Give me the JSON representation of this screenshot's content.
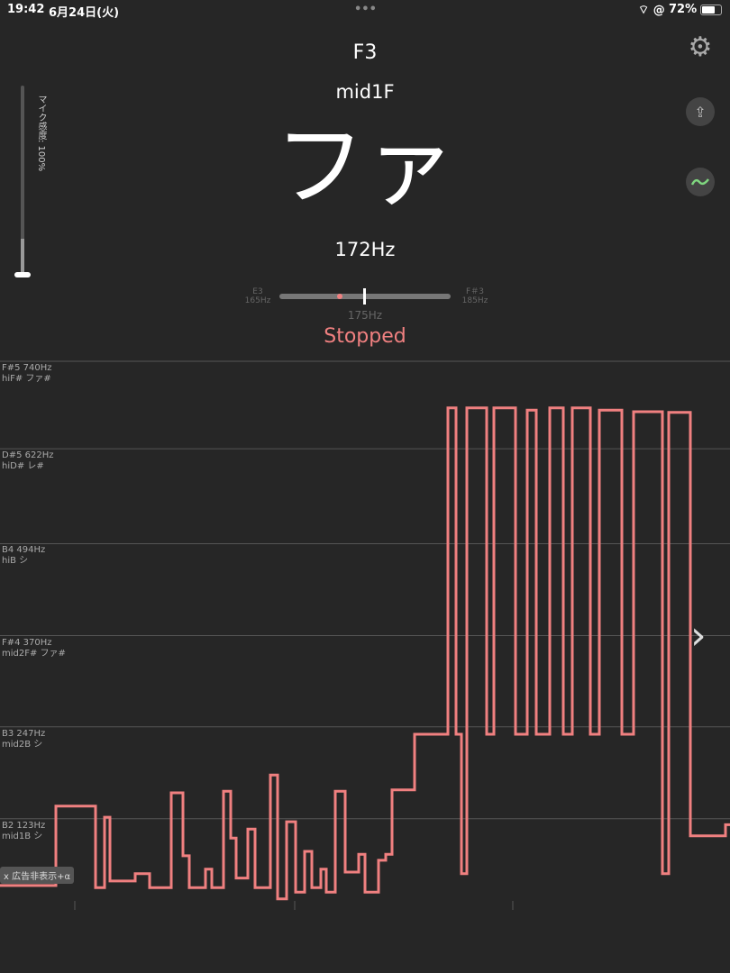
{
  "status_bar": {
    "time": "19:42",
    "date": "6月24日(火)",
    "battery": "72%",
    "dots": "•••"
  },
  "note": {
    "name": "F3",
    "octave_name": "mid1F",
    "solfege": "ファ",
    "frequency": "172Hz"
  },
  "mic": {
    "label": "マイク感度: 100%",
    "level": 1.0
  },
  "tuner": {
    "low_note": "E3",
    "low_hz": "165Hz",
    "high_note": "F＃3",
    "high_hz": "185Hz",
    "center_hz": "175Hz",
    "current_position": 0.35
  },
  "state": "Stopped",
  "icons": {
    "settings": "gear-icon",
    "share": "share-icon",
    "graph": "wave-icon",
    "next": "chevron-right-icon"
  },
  "colors": {
    "trace": "#f08080",
    "accent_green": "#7fd67f",
    "background": "#262626"
  },
  "ad_button": "x 広告非表示+α",
  "chart_data": {
    "type": "line",
    "ylabel": "",
    "y_scale": "linear",
    "grid_lines": [
      {
        "hz": 740,
        "label": "F#5  740Hz",
        "sub": "hiF# ファ#"
      },
      {
        "hz": 622,
        "label": "D#5  622Hz",
        "sub": "hiD# レ#"
      },
      {
        "hz": 494,
        "label": "B4  494Hz",
        "sub": "hiB シ"
      },
      {
        "hz": 370,
        "label": "F#4  370Hz",
        "sub": "mid2F# ファ#"
      },
      {
        "hz": 247,
        "label": "B3  247Hz",
        "sub": "mid2B シ"
      },
      {
        "hz": 123,
        "label": "B2  123Hz",
        "sub": "mid1B シ"
      }
    ],
    "series": [
      {
        "points": [
          [
            0,
            33
          ],
          [
            62,
            33
          ],
          [
            62,
            140
          ],
          [
            106,
            140
          ],
          [
            106,
            30
          ],
          [
            116,
            30
          ],
          [
            116,
            125
          ],
          [
            122,
            125
          ],
          [
            122,
            39
          ],
          [
            150,
            39
          ],
          [
            150,
            49
          ],
          [
            166,
            49
          ],
          [
            166,
            30
          ],
          [
            190,
            30
          ],
          [
            190,
            158
          ],
          [
            203,
            158
          ],
          [
            203,
            73
          ],
          [
            210,
            73
          ],
          [
            210,
            30
          ],
          [
            228,
            30
          ],
          [
            228,
            55
          ],
          [
            235,
            55
          ],
          [
            235,
            30
          ],
          [
            248,
            30
          ],
          [
            248,
            160
          ],
          [
            256,
            160
          ],
          [
            256,
            97
          ],
          [
            262,
            97
          ],
          [
            262,
            43
          ],
          [
            275,
            43
          ],
          [
            275,
            109
          ],
          [
            283,
            109
          ],
          [
            283,
            30
          ],
          [
            300,
            30
          ],
          [
            300,
            182
          ],
          [
            308,
            182
          ],
          [
            308,
            15
          ],
          [
            318,
            15
          ],
          [
            318,
            119
          ],
          [
            328,
            119
          ],
          [
            328,
            24
          ],
          [
            338,
            24
          ],
          [
            338,
            79
          ],
          [
            346,
            79
          ],
          [
            346,
            30
          ],
          [
            356,
            30
          ],
          [
            356,
            55
          ],
          [
            362,
            55
          ],
          [
            362,
            24
          ],
          [
            372,
            24
          ],
          [
            372,
            160
          ],
          [
            383,
            160
          ],
          [
            383,
            51
          ],
          [
            398,
            51
          ],
          [
            398,
            75
          ],
          [
            405,
            75
          ],
          [
            405,
            24
          ],
          [
            420,
            24
          ],
          [
            420,
            67
          ],
          [
            428,
            67
          ],
          [
            428,
            75
          ],
          [
            435,
            75
          ],
          [
            435,
            162
          ],
          [
            460,
            162
          ],
          [
            460,
            237
          ],
          [
            497,
            237
          ],
          [
            497,
            677
          ],
          [
            506,
            677
          ],
          [
            506,
            237
          ],
          [
            512,
            237
          ],
          [
            512,
            49
          ],
          [
            518,
            49
          ],
          [
            518,
            677
          ],
          [
            540,
            677
          ],
          [
            540,
            237
          ],
          [
            548,
            237
          ],
          [
            548,
            677
          ],
          [
            572,
            677
          ],
          [
            572,
            237
          ],
          [
            585,
            237
          ],
          [
            585,
            674
          ],
          [
            595,
            674
          ],
          [
            595,
            237
          ],
          [
            610,
            237
          ],
          [
            610,
            677
          ],
          [
            625,
            677
          ],
          [
            625,
            237
          ],
          [
            635,
            237
          ],
          [
            635,
            677
          ],
          [
            655,
            677
          ],
          [
            655,
            237
          ],
          [
            665,
            237
          ],
          [
            665,
            674
          ],
          [
            690,
            674
          ],
          [
            690,
            237
          ],
          [
            703,
            237
          ],
          [
            703,
            672
          ],
          [
            735,
            672
          ],
          [
            735,
            49
          ],
          [
            742,
            49
          ],
          [
            742,
            671
          ],
          [
            766,
            671
          ],
          [
            766,
            100
          ],
          [
            805,
            100
          ],
          [
            805,
            115
          ],
          [
            810,
            115
          ]
        ]
      }
    ]
  }
}
